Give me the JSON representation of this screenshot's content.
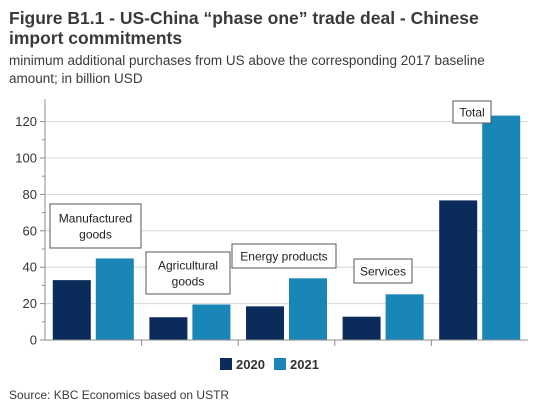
{
  "title": "Figure B1.1 - US-China “phase one” trade deal - Chinese import commitments",
  "subtitle": "minimum additional purchases from US above the corresponding 2017 baseline amount; in billion USD",
  "source": "Source: KBC Economics based on USTR",
  "colors": {
    "2020": "#0b2c5a",
    "2021": "#1a86b8"
  },
  "chart_data": {
    "type": "bar",
    "categories": [
      "Manufactured goods",
      "Agricultural goods",
      "Energy products",
      "Services",
      "Total"
    ],
    "series": [
      {
        "name": "2020",
        "values": [
          32.9,
          12.5,
          18.5,
          12.8,
          76.7
        ]
      },
      {
        "name": "2021",
        "values": [
          44.8,
          19.5,
          33.9,
          25.1,
          123.3
        ]
      }
    ],
    "annotations": [
      {
        "category": "Manufactured goods",
        "lines": [
          "Manufactured",
          "goods"
        ]
      },
      {
        "category": "Agricultural goods",
        "lines": [
          "Agricultural",
          "goods"
        ]
      },
      {
        "category": "Energy products",
        "lines": [
          "Energy products"
        ]
      },
      {
        "category": "Services",
        "lines": [
          "Services"
        ]
      },
      {
        "category": "Total",
        "lines": [
          "Total"
        ]
      }
    ],
    "yticks": [
      0,
      20,
      40,
      60,
      80,
      100,
      120
    ],
    "ylim": [
      0,
      130
    ],
    "legend_position": "bottom",
    "grid": true
  }
}
